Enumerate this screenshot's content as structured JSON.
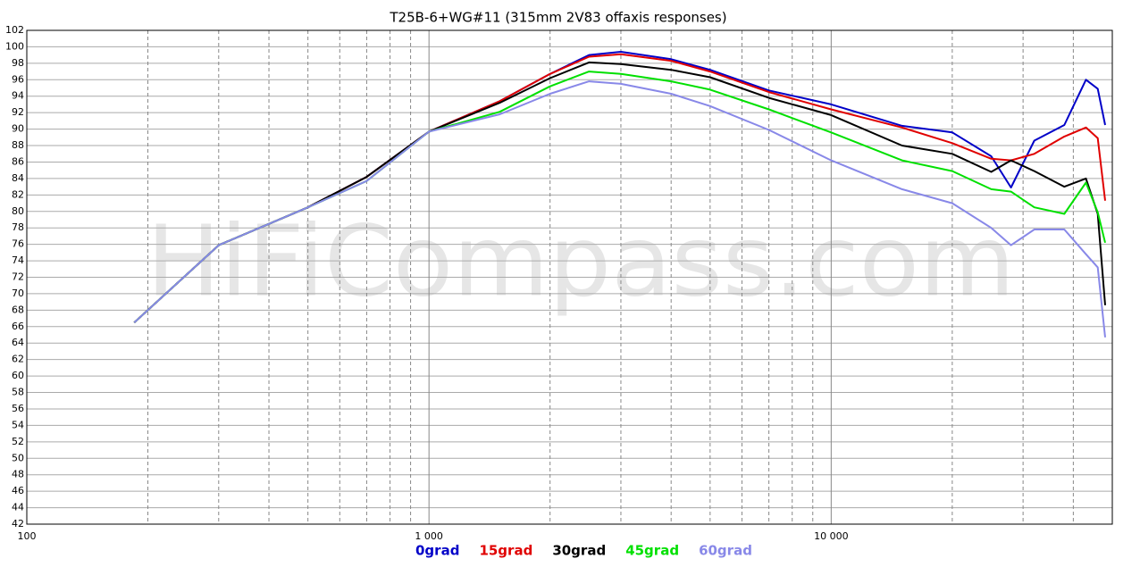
{
  "chart_data": {
    "type": "line",
    "title": "T25B-6+WG#11 (315mm 2V83 offaxis responses)",
    "watermark": "HiFiCompass.com",
    "xscale": "log",
    "xlim": [
      100,
      50000
    ],
    "ylim": [
      42,
      102
    ],
    "xticks": [
      {
        "value": 100,
        "label": "100"
      },
      {
        "value": 1000,
        "label": "1 000"
      },
      {
        "value": 10000,
        "label": "10 000"
      }
    ],
    "xminor": [
      200,
      300,
      400,
      500,
      600,
      700,
      800,
      900,
      2000,
      3000,
      4000,
      5000,
      6000,
      7000,
      8000,
      9000,
      20000,
      30000,
      40000,
      50000
    ],
    "yticks": [
      42,
      44,
      46,
      48,
      50,
      52,
      54,
      56,
      58,
      60,
      62,
      64,
      66,
      68,
      70,
      72,
      74,
      76,
      78,
      80,
      82,
      84,
      86,
      88,
      90,
      92,
      94,
      96,
      98,
      100,
      102
    ],
    "grid": true,
    "x": [
      185,
      300,
      500,
      700,
      1000,
      1500,
      2000,
      2500,
      3000,
      4000,
      5000,
      7000,
      10000,
      15000,
      20000,
      25000,
      28000,
      32000,
      38000,
      43000,
      46000,
      48000
    ],
    "series": [
      {
        "name": "0grad",
        "color": "#0000c8",
        "values": [
          66.5,
          75.9,
          80.5,
          84.2,
          89.7,
          93.4,
          96.7,
          99.0,
          99.4,
          98.5,
          97.2,
          94.7,
          93.0,
          90.4,
          89.6,
          86.7,
          82.9,
          88.6,
          90.5,
          96.0,
          94.9,
          90.5
        ]
      },
      {
        "name": "15grad",
        "color": "#e00000",
        "values": [
          66.5,
          75.9,
          80.5,
          84.2,
          89.7,
          93.4,
          96.7,
          98.8,
          99.1,
          98.3,
          97.0,
          94.5,
          92.4,
          90.2,
          88.3,
          86.4,
          86.2,
          87.0,
          89.1,
          90.2,
          88.9,
          81.3
        ]
      },
      {
        "name": "30grad",
        "color": "#000000",
        "values": [
          66.5,
          75.9,
          80.5,
          84.2,
          89.7,
          93.2,
          96.2,
          98.1,
          97.9,
          97.2,
          96.3,
          93.8,
          91.7,
          88.0,
          87.0,
          84.8,
          86.2,
          84.9,
          83.0,
          84.0,
          79.7,
          68.6
        ]
      },
      {
        "name": "45grad",
        "color": "#00e000",
        "values": [
          66.5,
          75.9,
          80.5,
          83.7,
          89.7,
          92.1,
          95.2,
          97.0,
          96.7,
          95.8,
          94.8,
          92.4,
          89.6,
          86.2,
          84.9,
          82.7,
          82.4,
          80.5,
          79.7,
          83.5,
          79.9,
          76.2
        ]
      },
      {
        "name": "60grad",
        "color": "#8888e8",
        "values": [
          66.5,
          75.9,
          80.5,
          83.7,
          89.7,
          91.8,
          94.3,
          95.8,
          95.5,
          94.3,
          92.8,
          89.9,
          86.2,
          82.7,
          81.0,
          78.0,
          75.9,
          77.8,
          77.8,
          74.8,
          73.2,
          64.7
        ]
      }
    ]
  }
}
